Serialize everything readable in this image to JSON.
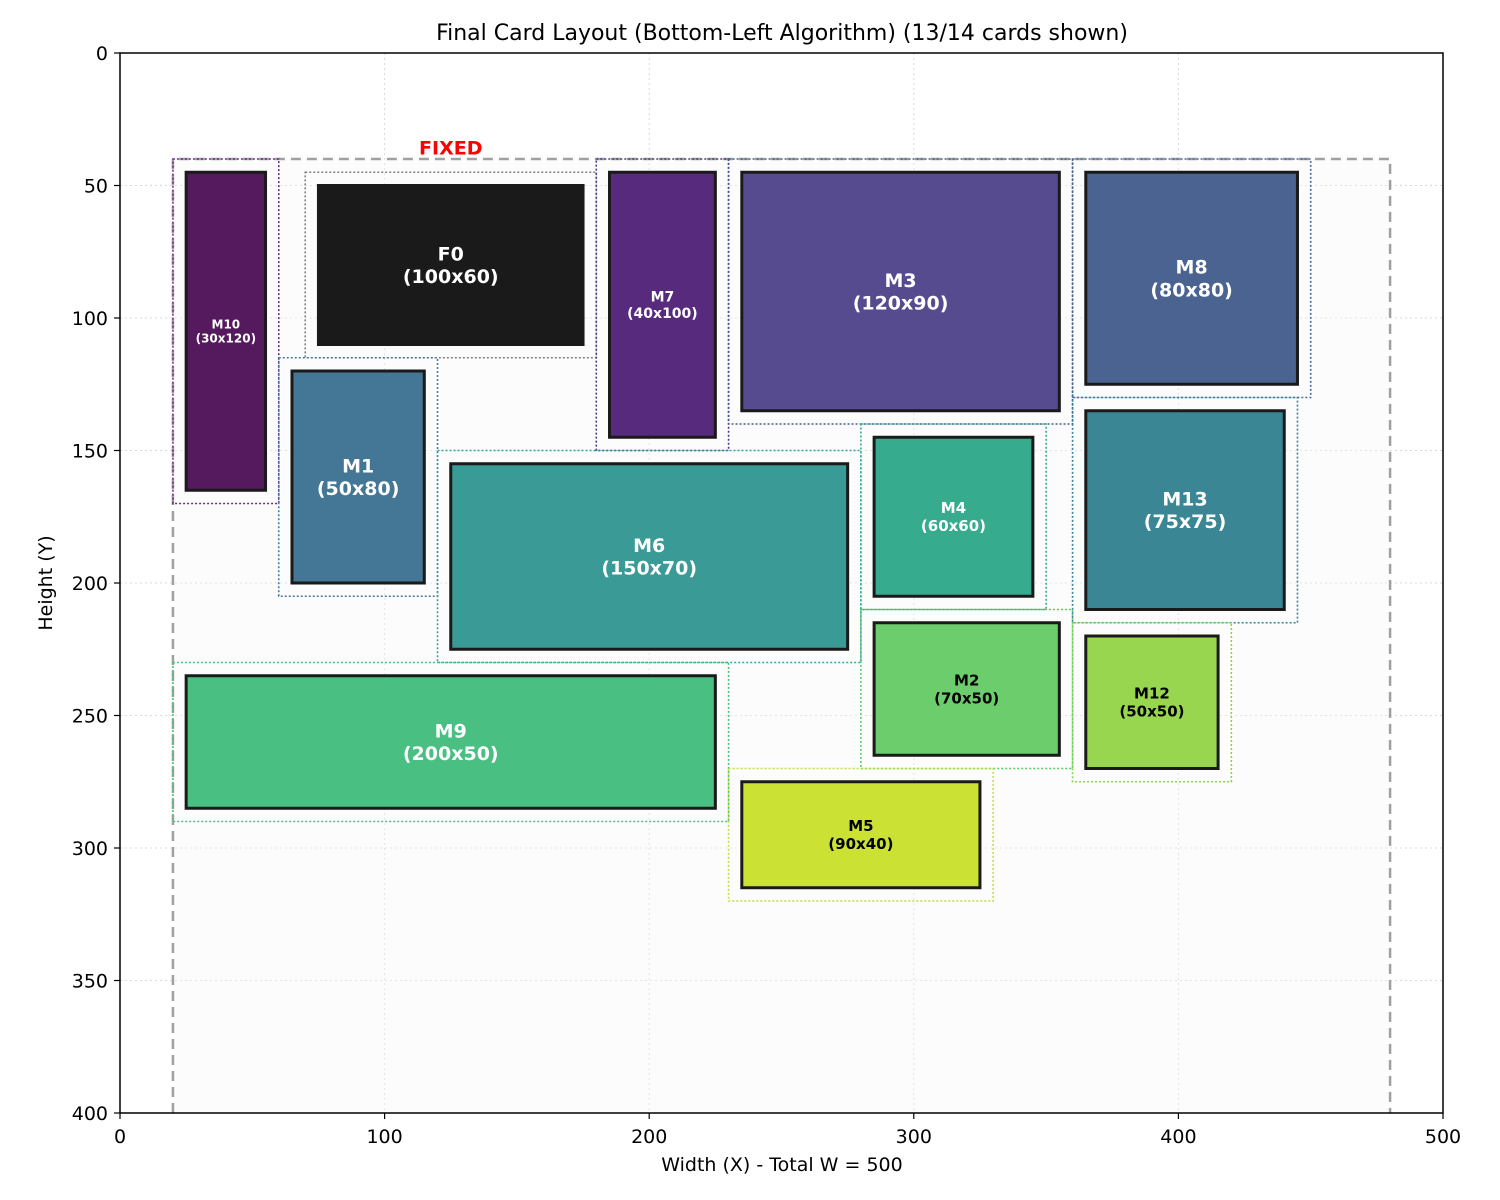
{
  "chart_data": {
    "type": "rectangle-layout",
    "title": "Final Card Layout (Bottom-Left Algorithm) (13/14 cards shown)",
    "xlabel": "Width (X) - Total W = 500",
    "ylabel": "Height (Y)",
    "xlim": [
      0,
      500
    ],
    "ylim": [
      400,
      0
    ],
    "y_inverted": true,
    "grid": true,
    "xticks": [
      0,
      100,
      200,
      300,
      400,
      500
    ],
    "yticks": [
      0,
      50,
      100,
      150,
      200,
      250,
      300,
      350,
      400
    ],
    "container": {
      "x0": 20,
      "x1": 480,
      "y0": 40,
      "y1": 400,
      "style": "dashed"
    },
    "fixed_label": "FIXED",
    "cards": [
      {
        "id": "F0",
        "label": "F0",
        "size": "(100x60)",
        "x": 75,
        "y": 50,
        "w": 100,
        "h": 60,
        "fill": "#1a1a1a",
        "text_color": "#ffffff",
        "outline_color": "#808080",
        "fixed": true,
        "margin": 5
      },
      {
        "id": "M10",
        "label": "M10",
        "size": "(30x120)",
        "x": 25,
        "y": 45,
        "w": 30,
        "h": 120,
        "fill": "#551a5e",
        "text_color": "#ffffff",
        "outline_color": "#6b2c7e",
        "margin": 5
      },
      {
        "id": "M7",
        "label": "M7",
        "size": "(40x100)",
        "x": 185,
        "y": 45,
        "w": 40,
        "h": 100,
        "fill": "#582a7e",
        "text_color": "#ffffff",
        "outline_color": "#4a3a8a",
        "margin": 5
      },
      {
        "id": "M3",
        "label": "M3",
        "size": "(120x90)",
        "x": 235,
        "y": 45,
        "w": 120,
        "h": 90,
        "fill": "#574b8f",
        "text_color": "#ffffff",
        "outline_color": "#4a5a96",
        "margin": 5
      },
      {
        "id": "M8",
        "label": "M8",
        "size": "(80x80)",
        "x": 365,
        "y": 45,
        "w": 80,
        "h": 80,
        "fill": "#4a6391",
        "text_color": "#ffffff",
        "outline_color": "#4a6a9a",
        "margin": 5
      },
      {
        "id": "M1",
        "label": "M1",
        "size": "(50x80)",
        "x": 65,
        "y": 120,
        "w": 50,
        "h": 80,
        "fill": "#437795",
        "text_color": "#ffffff",
        "outline_color": "#4a7aa2",
        "margin": 5
      },
      {
        "id": "M6",
        "label": "M6",
        "size": "(150x70)",
        "x": 125,
        "y": 155,
        "w": 150,
        "h": 70,
        "fill": "#3a9a96",
        "text_color": "#ffffff",
        "outline_color": "#3aa0a0",
        "margin": 5
      },
      {
        "id": "M4",
        "label": "M4",
        "size": "(60x60)",
        "x": 285,
        "y": 145,
        "w": 60,
        "h": 60,
        "fill": "#36ab8e",
        "text_color": "#ffffff",
        "outline_color": "#36ab8e",
        "margin": 5
      },
      {
        "id": "M13",
        "label": "M13",
        "size": "(75x75)",
        "x": 365,
        "y": 135,
        "w": 75,
        "h": 75,
        "fill": "#3a8694",
        "text_color": "#ffffff",
        "outline_color": "#3a86a0",
        "margin": 5
      },
      {
        "id": "M2",
        "label": "M2",
        "size": "(70x50)",
        "x": 285,
        "y": 215,
        "w": 70,
        "h": 50,
        "fill": "#6ccd6c",
        "text_color": "#000000",
        "outline_color": "#5cc86c",
        "margin": 5
      },
      {
        "id": "M12",
        "label": "M12",
        "size": "(50x50)",
        "x": 365,
        "y": 220,
        "w": 50,
        "h": 50,
        "fill": "#98d650",
        "text_color": "#000000",
        "outline_color": "#8ad650",
        "margin": 5
      },
      {
        "id": "M9",
        "label": "M9",
        "size": "(200x50)",
        "x": 25,
        "y": 235,
        "w": 200,
        "h": 50,
        "fill": "#4abf82",
        "text_color": "#ffffff",
        "outline_color": "#4abf82",
        "margin": 5
      },
      {
        "id": "M5",
        "label": "M5",
        "size": "(90x40)",
        "x": 235,
        "y": 275,
        "w": 90,
        "h": 40,
        "fill": "#cbe134",
        "text_color": "#000000",
        "outline_color": "#c2e040",
        "margin": 5
      }
    ]
  }
}
